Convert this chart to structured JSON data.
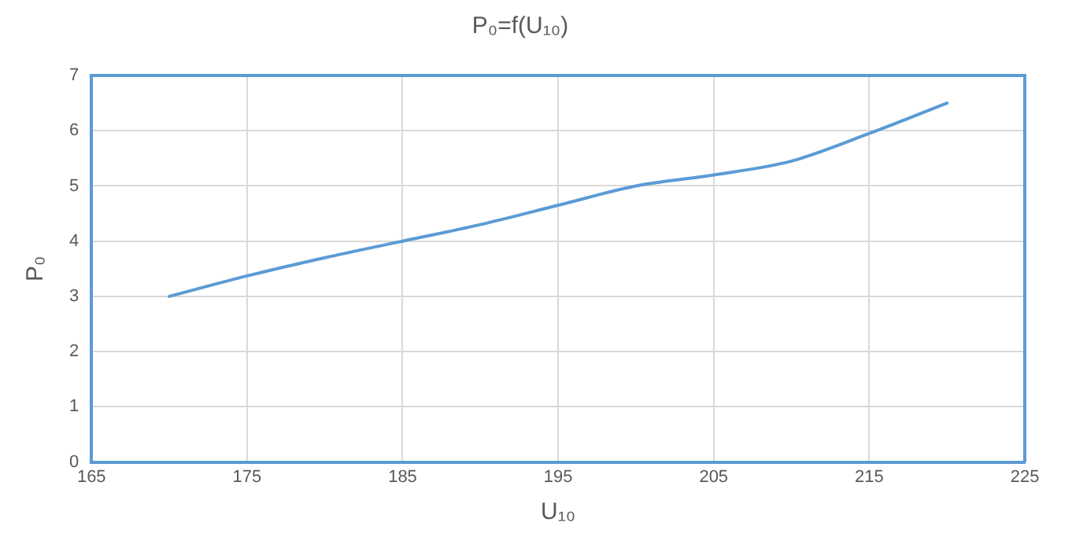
{
  "chart_data": {
    "type": "line",
    "title": "P₀=f(U₁₀)",
    "xlabel": "U₁₀",
    "ylabel": "P₀",
    "x": [
      170,
      175,
      180,
      185,
      190,
      195,
      200,
      205,
      210,
      215,
      220
    ],
    "series": [
      {
        "color": "#5b9bd5",
        "values": [
          3,
          3.37,
          3.7,
          4,
          4.3,
          4.65,
          5,
          5.2,
          5.45,
          5.95,
          6.5
        ]
      }
    ],
    "xlim": [
      165,
      225
    ],
    "xticks": [
      165,
      175,
      185,
      195,
      205,
      215,
      225
    ],
    "ylim": [
      0,
      7
    ],
    "yticks": [
      0,
      1,
      2,
      3,
      4,
      5,
      6,
      7
    ],
    "grid": true,
    "legend": false,
    "marker": "none",
    "line_style": "solid"
  }
}
